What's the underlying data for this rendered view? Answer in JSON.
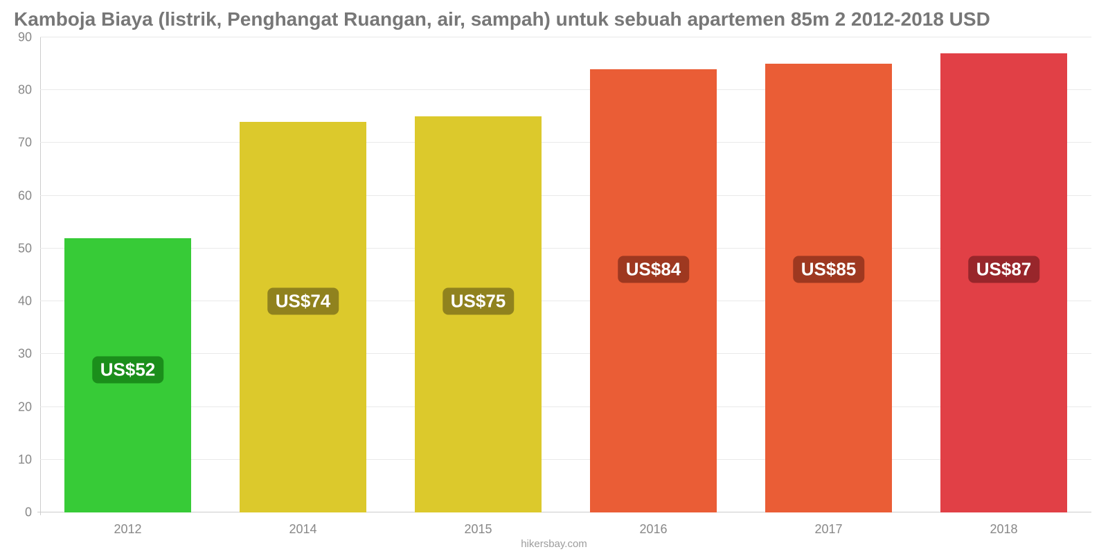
{
  "title": "Kamboja Biaya (listrik, Penghangat Ruangan, air, sampah) untuk sebuah apartemen 85m 2 2012-2018 USD",
  "title_color": "#777777",
  "title_fontsize": 28,
  "source": "hikersbay.com",
  "chart": {
    "type": "bar",
    "background_color": "#ffffff",
    "grid_color": "#e9e9e9",
    "axis_color": "#cccccc",
    "tick_label_color": "#888888",
    "tick_fontsize": 18,
    "ylim": [
      0,
      90
    ],
    "ytick_step": 10,
    "yticks": [
      0,
      10,
      20,
      30,
      40,
      50,
      60,
      70,
      80,
      90
    ],
    "bar_width": 0.72,
    "categories": [
      "2012",
      "2014",
      "2015",
      "2016",
      "2017",
      "2018"
    ],
    "values": [
      52,
      74,
      75,
      84,
      85,
      87
    ],
    "value_labels": [
      "US$52",
      "US$74",
      "US$75",
      "US$84",
      "US$85",
      "US$87"
    ],
    "bar_colors": [
      "#37cb37",
      "#dcc92c",
      "#dcc92c",
      "#ea5d36",
      "#ea5d36",
      "#e14046"
    ],
    "badge_colors": [
      "#1b8e1b",
      "#90821e",
      "#90821e",
      "#9e3820",
      "#9e3820",
      "#98262b"
    ],
    "badge_text_color": "#ffffff",
    "badge_fontsize": 26,
    "label_bottom_values": [
      27,
      40,
      40,
      46,
      46,
      46
    ]
  }
}
